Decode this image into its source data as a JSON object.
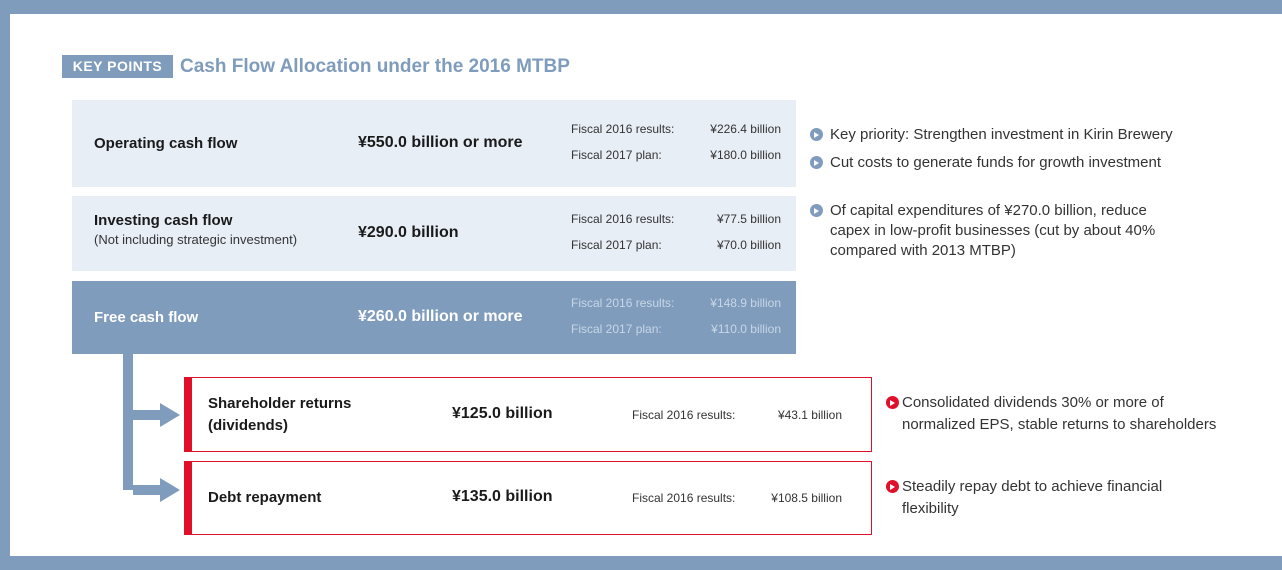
{
  "header": {
    "tag": "KEY POINTS",
    "title": "Cash Flow Allocation under the 2016 MTBP"
  },
  "flows": [
    {
      "label": "Operating cash flow",
      "amount": "¥550.0 billion or more",
      "details": [
        {
          "label": "Fiscal 2016 results:",
          "value": "¥226.4 billion"
        },
        {
          "label": "Fiscal 2017 plan:",
          "value": "¥180.0 billion"
        }
      ]
    },
    {
      "label": "Investing cash flow",
      "sublabel": "(Not including strategic investment)",
      "amount": "¥290.0 billion",
      "details": [
        {
          "label": "Fiscal 2016 results:",
          "value": "¥77.5 billion"
        },
        {
          "label": "Fiscal 2017 plan:",
          "value": "¥70.0 billion"
        }
      ]
    },
    {
      "label": "Free cash flow",
      "amount": "¥260.0 billion or more",
      "details": [
        {
          "label": "Fiscal 2016 results:",
          "value": "¥148.9 billion"
        },
        {
          "label": "Fiscal 2017 plan:",
          "value": "¥110.0 billion"
        }
      ]
    }
  ],
  "flow_points": [
    [
      "Key priority: Strengthen investment in Kirin Brewery"
    ],
    [
      "Cut costs to generate funds for growth investment"
    ],
    [
      "Of capital expenditures of ¥270.0 billion, reduce",
      "capex in low-profit businesses (cut by about 40%",
      "compared with 2013 MTBP)"
    ]
  ],
  "allocations": [
    {
      "label": [
        "Shareholder returns",
        "(dividends)"
      ],
      "amount": "¥125.0 billion",
      "detail": {
        "label": "Fiscal 2016 results:",
        "value": "¥43.1 billion"
      },
      "points": [
        "Consolidated dividends 30% or more of",
        "normalized EPS, stable returns to shareholders"
      ]
    },
    {
      "label": [
        "Debt repayment"
      ],
      "amount": "¥135.0 billion",
      "detail": {
        "label": "Fiscal 2016 results:",
        "value": "¥108.5 billion"
      },
      "points": [
        "Steadily repay debt to achieve financial",
        "flexibility"
      ]
    }
  ]
}
